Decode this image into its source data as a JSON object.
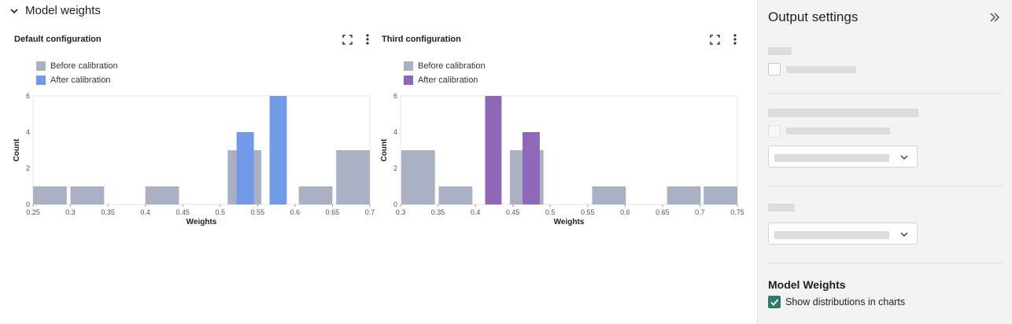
{
  "section": {
    "title": "Model weights"
  },
  "charts": [
    {
      "title": "Default configuration",
      "legend": {
        "before": "Before calibration",
        "after": "After calibration"
      },
      "after_color": "#7199e6"
    },
    {
      "title": "Third configuration",
      "legend": {
        "before": "Before calibration",
        "after": "After calibration"
      },
      "after_color": "#8e67b8"
    }
  ],
  "chart_data": [
    {
      "type": "bar",
      "title": "Default configuration",
      "xlabel": "Weights",
      "ylabel": "Count",
      "xlim": [
        0.25,
        0.7
      ],
      "ylim": [
        0,
        6
      ],
      "xticks": [
        "0.25",
        "0.3",
        "0.35",
        "0.4",
        "0.45",
        "0.5",
        "0.55",
        "0.6",
        "0.65",
        "0.7"
      ],
      "yticks": [
        "0",
        "2",
        "4",
        "6"
      ],
      "grid": false,
      "legend_position": "top-left",
      "series": [
        {
          "name": "Before calibration",
          "color": "#aab1c3",
          "bins": [
            {
              "x0": 0.25,
              "x1": 0.295,
              "count": 1
            },
            {
              "x0": 0.3,
              "x1": 0.345,
              "count": 1
            },
            {
              "x0": 0.4,
              "x1": 0.445,
              "count": 1
            },
            {
              "x0": 0.51,
              "x1": 0.555,
              "count": 3
            },
            {
              "x0": 0.605,
              "x1": 0.65,
              "count": 1
            },
            {
              "x0": 0.655,
              "x1": 0.7,
              "count": 3
            }
          ]
        },
        {
          "name": "After calibration",
          "color": "#7199e6",
          "bins": [
            {
              "x0": 0.522,
              "x1": 0.545,
              "count": 4
            },
            {
              "x0": 0.566,
              "x1": 0.589,
              "count": 6
            }
          ]
        }
      ]
    },
    {
      "type": "bar",
      "title": "Third configuration",
      "xlabel": "Weights",
      "ylabel": "Count",
      "xlim": [
        0.3,
        0.75
      ],
      "ylim": [
        0,
        6
      ],
      "xticks": [
        "0.3",
        "0.35",
        "0.4",
        "0.45",
        "0.5",
        "0.55",
        "0.6",
        "0.65",
        "0.7",
        "0.75"
      ],
      "yticks": [
        "0",
        "2",
        "4",
        "6"
      ],
      "grid": false,
      "legend_position": "top-left",
      "series": [
        {
          "name": "Before calibration",
          "color": "#aab1c3",
          "bins": [
            {
              "x0": 0.301,
              "x1": 0.346,
              "count": 3
            },
            {
              "x0": 0.351,
              "x1": 0.396,
              "count": 1
            },
            {
              "x0": 0.446,
              "x1": 0.491,
              "count": 3
            },
            {
              "x0": 0.556,
              "x1": 0.601,
              "count": 1
            },
            {
              "x0": 0.656,
              "x1": 0.701,
              "count": 1
            },
            {
              "x0": 0.705,
              "x1": 0.75,
              "count": 1
            }
          ]
        },
        {
          "name": "After calibration",
          "color": "#8e67b8",
          "bins": [
            {
              "x0": 0.413,
              "x1": 0.435,
              "count": 6
            },
            {
              "x0": 0.463,
              "x1": 0.486,
              "count": 4
            }
          ]
        }
      ]
    }
  ],
  "sidebar": {
    "title": "Output settings",
    "model_weights": {
      "title": "Model Weights",
      "show_distributions_label": "Show distributions in charts",
      "show_distributions_checked": true,
      "check_color": "#2f7a6b"
    }
  }
}
